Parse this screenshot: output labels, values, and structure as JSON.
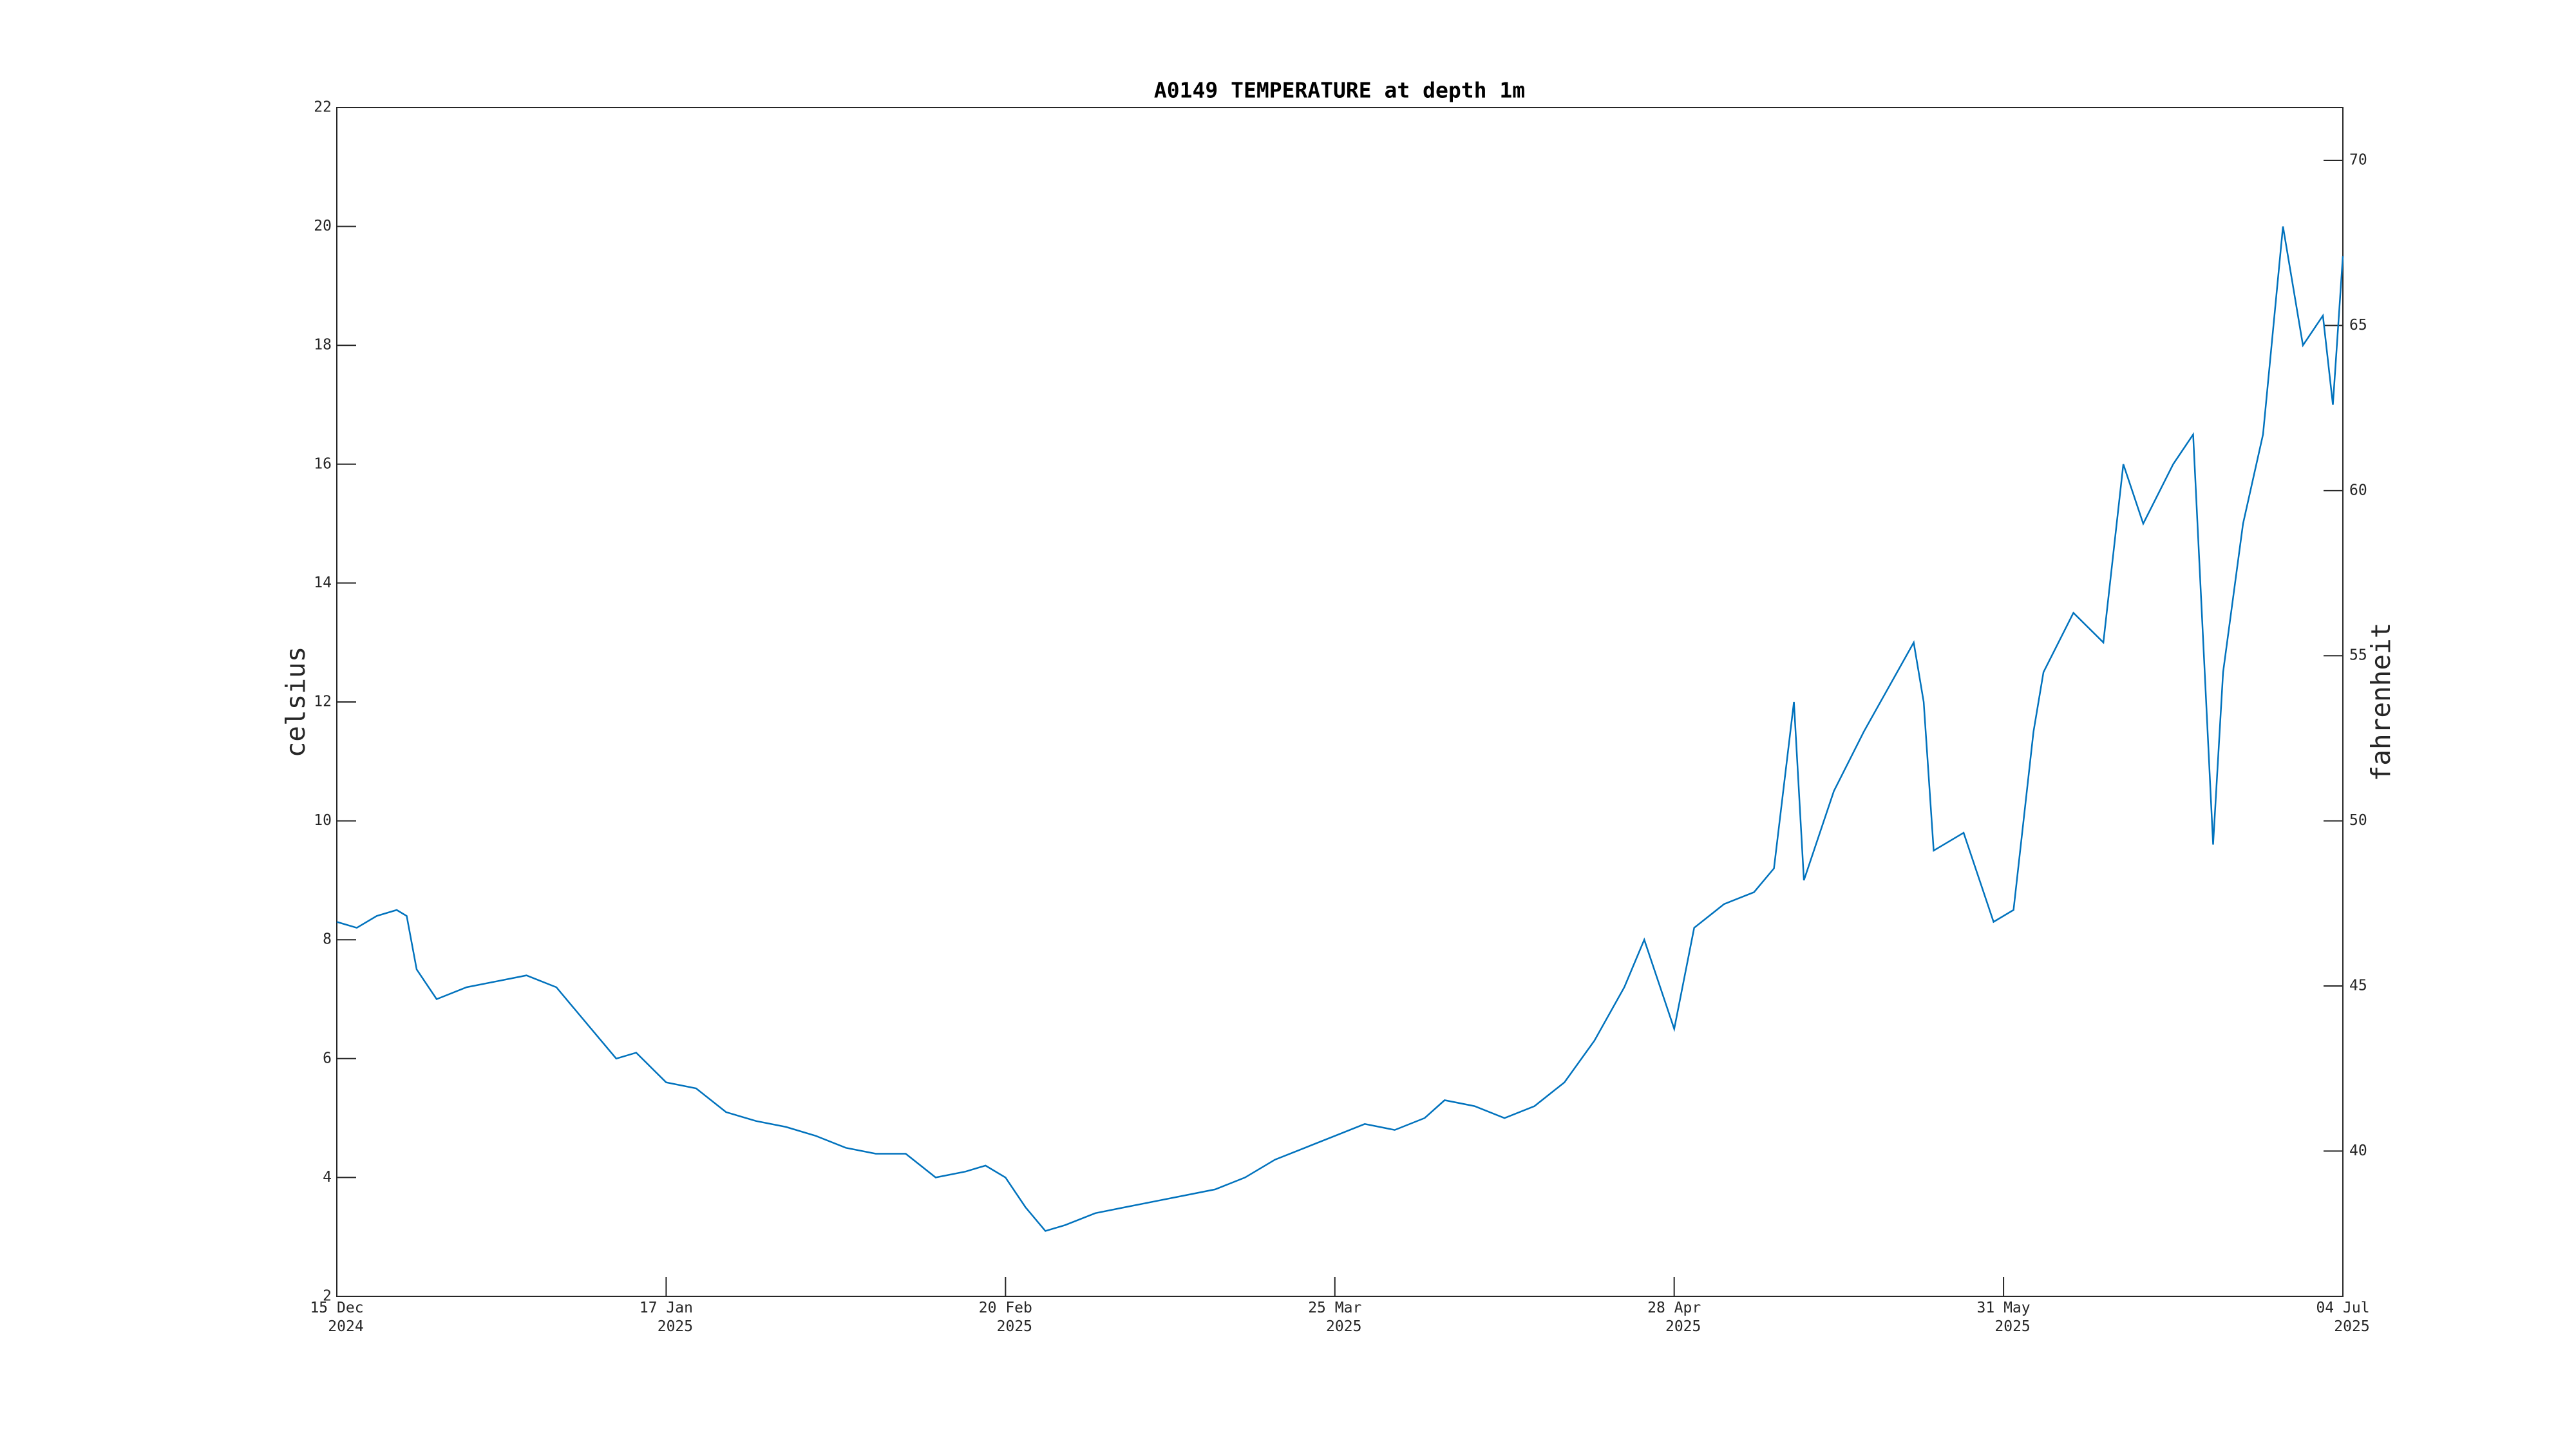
{
  "chart_data": {
    "type": "line",
    "title": "A0149 TEMPERATURE at depth 1m",
    "y_label": "celsius",
    "y2_label": "fahrenheit",
    "xlim": [
      "2024-12-15",
      "2025-07-04"
    ],
    "xticks": [
      {
        "value": "2024-12-15",
        "label": [
          "15 Dec",
          "2024"
        ]
      },
      {
        "value": "2025-01-17",
        "label": [
          "17 Jan",
          "2025"
        ]
      },
      {
        "value": "2025-02-20",
        "label": [
          "20 Feb",
          "2025"
        ]
      },
      {
        "value": "2025-03-25",
        "label": [
          "25 Mar",
          "2025"
        ]
      },
      {
        "value": "2025-04-28",
        "label": [
          "28 Apr",
          "2025"
        ]
      },
      {
        "value": "2025-05-31",
        "label": [
          "31 May",
          "2025"
        ]
      },
      {
        "value": "2025-07-04",
        "label": [
          "04 Jul",
          "2025"
        ]
      }
    ],
    "ylim": [
      2,
      22
    ],
    "yticks": [
      2,
      4,
      6,
      8,
      10,
      12,
      14,
      16,
      18,
      20,
      22
    ],
    "y2lim": [
      35.6,
      71.6
    ],
    "y2ticks": [
      40,
      45,
      50,
      55,
      60,
      65,
      70
    ],
    "x": [
      "2024-12-15",
      "2024-12-17",
      "2024-12-19",
      "2024-12-21",
      "2024-12-22",
      "2024-12-23",
      "2024-12-25",
      "2024-12-28",
      "2024-12-31",
      "2025-01-03",
      "2025-01-06",
      "2025-01-08",
      "2025-01-10",
      "2025-01-12",
      "2025-01-14",
      "2025-01-17",
      "2025-01-20",
      "2025-01-23",
      "2025-01-26",
      "2025-01-29",
      "2025-02-01",
      "2025-02-04",
      "2025-02-07",
      "2025-02-10",
      "2025-02-13",
      "2025-02-16",
      "2025-02-18",
      "2025-02-20",
      "2025-02-22",
      "2025-02-24",
      "2025-02-26",
      "2025-03-01",
      "2025-03-04",
      "2025-03-07",
      "2025-03-10",
      "2025-03-13",
      "2025-03-16",
      "2025-03-19",
      "2025-03-22",
      "2025-03-25",
      "2025-03-28",
      "2025-03-31",
      "2025-04-03",
      "2025-04-05",
      "2025-04-08",
      "2025-04-11",
      "2025-04-14",
      "2025-04-17",
      "2025-04-20",
      "2025-04-23",
      "2025-04-25",
      "2025-04-27",
      "2025-04-28",
      "2025-04-30",
      "2025-05-03",
      "2025-05-06",
      "2025-05-08",
      "2025-05-10",
      "2025-05-11",
      "2025-05-14",
      "2025-05-17",
      "2025-05-20",
      "2025-05-22",
      "2025-05-23",
      "2025-05-24",
      "2025-05-27",
      "2025-05-30",
      "2025-06-01",
      "2025-06-03",
      "2025-06-04",
      "2025-06-07",
      "2025-06-10",
      "2025-06-12",
      "2025-06-14",
      "2025-06-17",
      "2025-06-19",
      "2025-06-21",
      "2025-06-22",
      "2025-06-24",
      "2025-06-26",
      "2025-06-28",
      "2025-06-30",
      "2025-07-02",
      "2025-07-03",
      "2025-07-04"
    ],
    "series": [
      {
        "name": "temperature",
        "color": "#0072bd",
        "values": [
          8.3,
          8.2,
          8.4,
          8.5,
          8.4,
          7.5,
          7.0,
          7.2,
          7.3,
          7.4,
          7.2,
          6.8,
          6.4,
          6.0,
          6.1,
          5.6,
          5.5,
          5.1,
          4.95,
          4.85,
          4.7,
          4.5,
          4.4,
          4.4,
          4.0,
          4.1,
          4.2,
          4.0,
          3.5,
          3.1,
          3.2,
          3.4,
          3.5,
          3.6,
          3.7,
          3.8,
          4.0,
          4.3,
          4.5,
          4.7,
          4.9,
          4.8,
          5.0,
          5.3,
          5.2,
          5.0,
          5.2,
          5.6,
          6.3,
          7.2,
          8.0,
          7.0,
          6.5,
          8.2,
          8.6,
          8.8,
          9.2,
          12.0,
          9.0,
          10.5,
          11.5,
          12.4,
          13.0,
          12.0,
          9.5,
          9.8,
          8.3,
          8.5,
          11.5,
          12.5,
          13.5,
          13.0,
          16.0,
          15.0,
          16.0,
          16.5,
          9.6,
          12.5,
          15.0,
          16.5,
          20.0,
          18.0,
          18.5,
          17.0,
          19.5
        ]
      }
    ]
  }
}
